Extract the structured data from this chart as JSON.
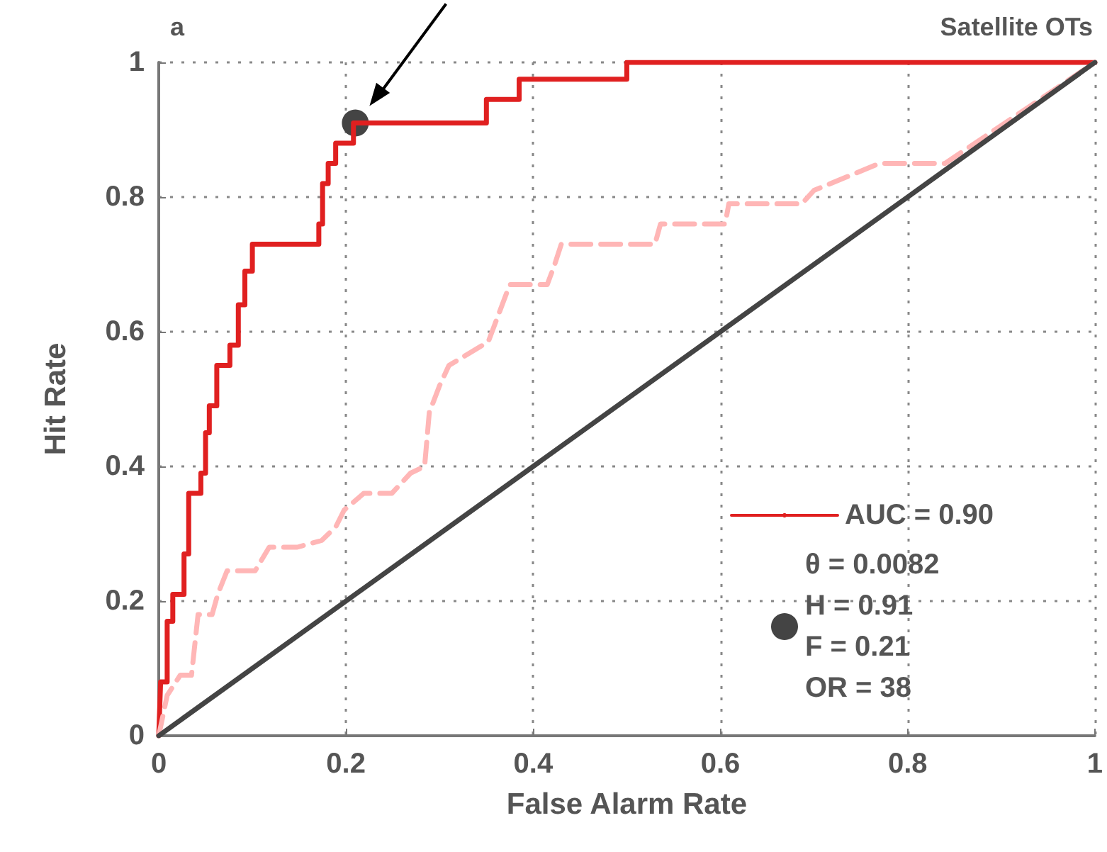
{
  "chart_data": {
    "type": "line",
    "title": "Satellite OTs",
    "annotations": [
      "a"
    ],
    "xlabel": "False Alarm Rate",
    "ylabel": "Hit Rate",
    "xlim": [
      0,
      1
    ],
    "ylim": [
      0,
      1
    ],
    "xticks": [
      0,
      0.2,
      0.4,
      0.6,
      0.8,
      1
    ],
    "yticks": [
      0,
      0.2,
      0.4,
      0.6,
      0.8,
      1
    ],
    "grid": true,
    "legend": "bottom right",
    "marker": "none",
    "series": [
      {
        "name": "AUC = 0.90",
        "color": "#e02020",
        "line_style": "solid",
        "x": [
          0,
          0.002,
          0.009,
          0.009,
          0.015,
          0.015,
          0.027,
          0.027,
          0.032,
          0.032,
          0.045,
          0.045,
          0.05,
          0.05,
          0.054,
          0.054,
          0.062,
          0.062,
          0.076,
          0.076,
          0.085,
          0.085,
          0.092,
          0.092,
          0.1,
          0.1,
          0.171,
          0.171,
          0.175,
          0.175,
          0.181,
          0.181,
          0.189,
          0.189,
          0.208,
          0.208,
          0.35,
          0.35,
          0.385,
          0.385,
          0.5,
          0.5,
          1
        ],
        "values": [
          0,
          0.08,
          0.08,
          0.17,
          0.17,
          0.21,
          0.21,
          0.27,
          0.27,
          0.36,
          0.36,
          0.39,
          0.39,
          0.45,
          0.45,
          0.49,
          0.49,
          0.55,
          0.55,
          0.58,
          0.58,
          0.64,
          0.64,
          0.69,
          0.69,
          0.73,
          0.73,
          0.76,
          0.76,
          0.82,
          0.82,
          0.85,
          0.85,
          0.88,
          0.88,
          0.91,
          0.91,
          0.945,
          0.945,
          0.975,
          0.975,
          1,
          1
        ]
      },
      {
        "color": "#ffb6b6",
        "line_style": "dashed",
        "x": [
          0,
          0.009,
          0.023,
          0.035,
          0.042,
          0.057,
          0.063,
          0.073,
          0.103,
          0.118,
          0.148,
          0.174,
          0.189,
          0.198,
          0.219,
          0.249,
          0.269,
          0.284,
          0.289,
          0.3,
          0.31,
          0.334,
          0.352,
          0.375,
          0.415,
          0.423,
          0.43,
          0.53,
          0.536,
          0.605,
          0.609,
          0.687,
          0.7,
          0.77,
          0.84,
          1
        ],
        "values": [
          0,
          0.06,
          0.09,
          0.09,
          0.18,
          0.18,
          0.21,
          0.245,
          0.245,
          0.28,
          0.28,
          0.29,
          0.31,
          0.335,
          0.36,
          0.36,
          0.39,
          0.4,
          0.48,
          0.52,
          0.55,
          0.57,
          0.585,
          0.67,
          0.67,
          0.7,
          0.73,
          0.73,
          0.76,
          0.76,
          0.79,
          0.79,
          0.81,
          0.85,
          0.85,
          1
        ]
      },
      {
        "color": "#444444",
        "line_style": "solid",
        "x": [
          0,
          1
        ],
        "values": [
          0,
          1
        ]
      },
      {
        "type": "scatter",
        "name": "θ = 0.0082\nH = 0.91\nF = 0.21\nOR = 38",
        "color": "#444444",
        "marker": "circle",
        "x": [
          0.21
        ],
        "values": [
          0.91
        ]
      }
    ]
  }
}
